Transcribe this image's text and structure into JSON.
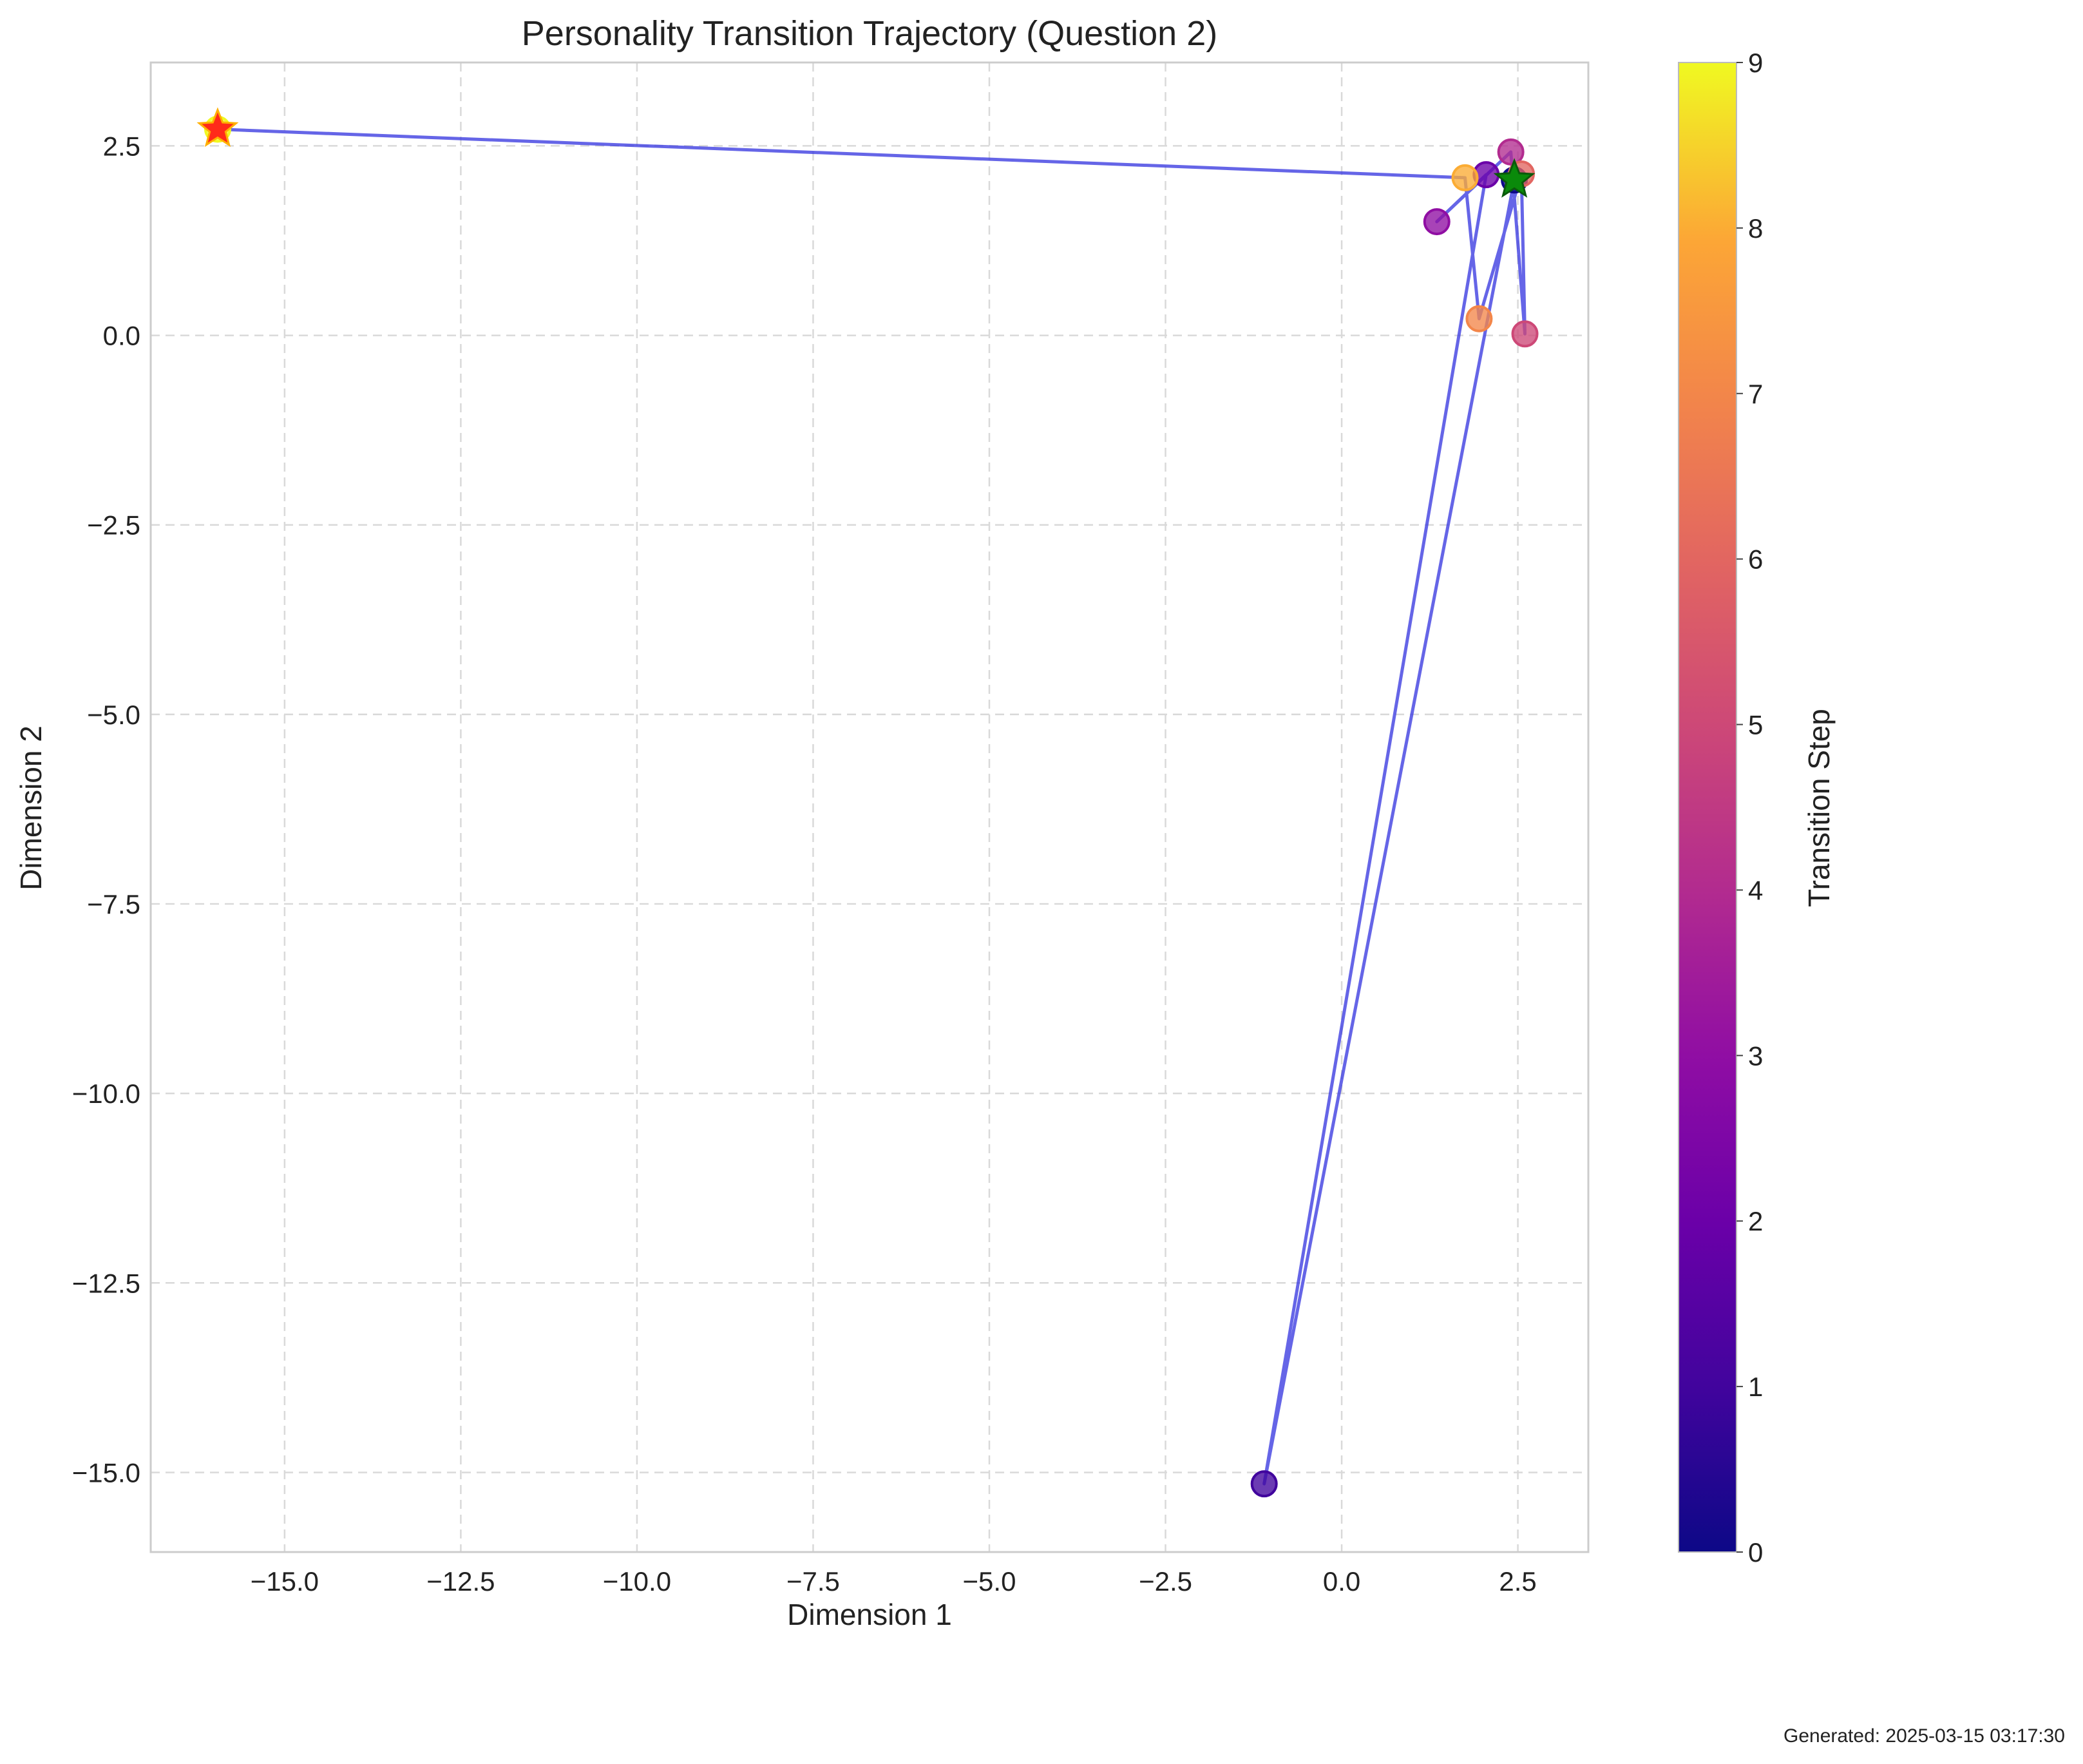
{
  "chart_data": {
    "type": "scatter",
    "title": "Personality Transition Trajectory (Question 2)",
    "xlabel": "Dimension 1",
    "ylabel": "Dimension 2",
    "xlim": [
      -16.9,
      3.5
    ],
    "ylim": [
      -16.05,
      3.6
    ],
    "xticks": [
      -15.0,
      -12.5,
      -10.0,
      -7.5,
      -5.0,
      -2.5,
      0.0,
      2.5
    ],
    "xtick_labels": [
      "−15.0",
      "−12.5",
      "−10.0",
      "−7.5",
      "−5.0",
      "−2.5",
      "0.0",
      "2.5"
    ],
    "yticks": [
      2.5,
      0.0,
      -2.5,
      -5.0,
      -7.5,
      -10.0,
      -12.5,
      -15.0
    ],
    "ytick_labels": [
      "2.5",
      "0.0",
      "−2.5",
      "−5.0",
      "−7.5",
      "−10.0",
      "−12.5",
      "−15.0"
    ],
    "grid": true,
    "colormap": "plasma",
    "colorbar": {
      "label": "Transition Step",
      "range": [
        0,
        9
      ],
      "ticks": [
        0,
        1,
        2,
        3,
        4,
        5,
        6,
        7,
        8,
        9
      ],
      "tick_labels": [
        "0",
        "1",
        "2",
        "3",
        "4",
        "5",
        "6",
        "7",
        "8",
        "9"
      ]
    },
    "points": [
      {
        "step": 0,
        "x": 2.45,
        "y": 2.05
      },
      {
        "step": 1,
        "x": -1.1,
        "y": -15.15
      },
      {
        "step": 2,
        "x": 2.05,
        "y": 2.12
      },
      {
        "step": 3,
        "x": 1.35,
        "y": 1.5
      },
      {
        "step": 4,
        "x": 2.4,
        "y": 2.42
      },
      {
        "step": 5,
        "x": 2.6,
        "y": 0.02
      },
      {
        "step": 6,
        "x": 2.55,
        "y": 2.13
      },
      {
        "step": 7,
        "x": 1.95,
        "y": 0.22
      },
      {
        "step": 8,
        "x": 1.75,
        "y": 2.08
      },
      {
        "step": 9,
        "x": -15.95,
        "y": 2.72
      }
    ],
    "path_order": [
      0,
      1,
      2,
      3,
      4,
      5,
      6,
      7,
      8,
      9
    ],
    "line_color": "#3a3ae0",
    "start_marker": {
      "step": 0,
      "shape": "star",
      "color": "#0a8a0a"
    },
    "end_marker": {
      "step": 9,
      "shape": "star",
      "color": "#ff2a1a"
    }
  },
  "footer": {
    "generated": "Generated: 2025-03-15 03:17:30"
  }
}
